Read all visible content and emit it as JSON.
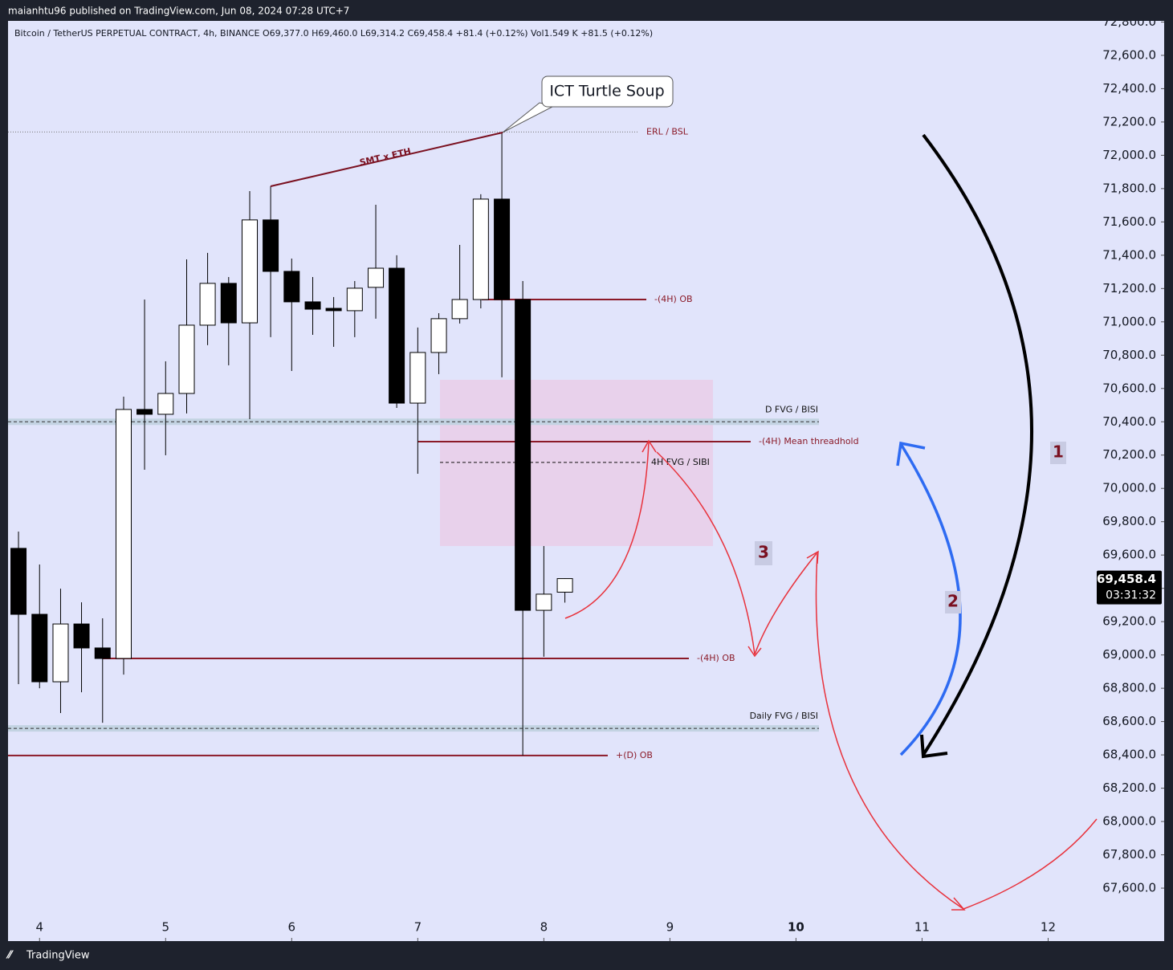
{
  "published": "maianhtu96 published on TradingView.com, Jun 08, 2024 07:28 UTC+7",
  "brand": "TradingView",
  "chart_data": {
    "type": "candlestick",
    "title": "Bitcoin / TetherUS PERPETUAL CONTRACT, 4h, BINANCE  O69,377.0  H69,460.0  L69,314.2  C69,458.4  +81.4 (+0.12%)  Vol1.549 K  +81.5 (+0.12%)",
    "x": [
      3.833,
      4,
      4.167,
      4.333,
      4.5,
      4.667,
      4.833,
      5,
      5.167,
      5.333,
      5.5,
      5.667,
      5.833,
      6,
      6.167,
      6.333,
      6.5,
      6.667,
      6.833,
      7,
      7.167,
      7.333,
      7.5,
      7.667,
      7.833,
      8,
      8.167
    ],
    "open": [
      69640,
      69244,
      68839,
      69186,
      69042,
      68979,
      70474,
      70445,
      70570,
      70980,
      71231,
      70994,
      71612,
      71303,
      71120,
      71081,
      71067,
      71207,
      71322,
      70512,
      70816,
      71019,
      71134,
      71737,
      71134,
      69268,
      69377
    ],
    "high": [
      69741,
      69543,
      69398,
      69316,
      69220,
      70551,
      71134,
      70763,
      71375,
      71414,
      71269,
      71785,
      71814,
      71380,
      71269,
      71149,
      71245,
      71703,
      71400,
      70966,
      71052,
      71462,
      71766,
      72137,
      71245,
      69654,
      69460
    ],
    "low": [
      68825,
      68800,
      68651,
      68776,
      68593,
      68882,
      70112,
      70199,
      70450,
      70860,
      70739,
      70416,
      70908,
      70705,
      70922,
      70850,
      70908,
      71019,
      70483,
      70088,
      70686,
      70990,
      71081,
      70667,
      68396,
      68989,
      69314.2
    ],
    "close": [
      69244,
      68839,
      69186,
      69042,
      68979,
      70474,
      70445,
      70570,
      70980,
      71231,
      70994,
      71612,
      71303,
      71120,
      71076,
      71067,
      71202,
      71322,
      70512,
      70816,
      71019,
      71134,
      71737,
      71134,
      69268,
      69365,
      69458.4
    ],
    "up_color": "#ffffff",
    "down_color": "#000000",
    "xlim": [
      3.75,
      12.36
    ],
    "xticks": [
      4,
      5,
      6,
      7,
      8,
      9,
      10,
      11,
      12
    ],
    "ylim": [
      67282,
      72807
    ],
    "yticks": [
      {
        "value": 67600,
        "label": "67,600.0"
      },
      {
        "value": 67800,
        "label": "67,800.0"
      },
      {
        "value": 68000,
        "label": "68,000.0"
      },
      {
        "value": 68200,
        "label": "68,200.0"
      },
      {
        "value": 68400,
        "label": "68,400.0"
      },
      {
        "value": 68600,
        "label": "68,600.0"
      },
      {
        "value": 68800,
        "label": "68,800.0"
      },
      {
        "value": 69000,
        "label": "69,000.0"
      },
      {
        "value": 69200,
        "label": "69,200.0"
      },
      {
        "value": 69400,
        "label": "69,400.0"
      },
      {
        "value": 69600,
        "label": "69,600.0"
      },
      {
        "value": 69800,
        "label": "69,800.0"
      },
      {
        "value": 70000,
        "label": "70,000.0"
      },
      {
        "value": 70200,
        "label": "70,200.0"
      },
      {
        "value": 70400,
        "label": "70,400.0"
      },
      {
        "value": 70600,
        "label": "70,600.0"
      },
      {
        "value": 70800,
        "label": "70,800.0"
      },
      {
        "value": 71000,
        "label": "71,000.0"
      },
      {
        "value": 71200,
        "label": "71,200.0"
      },
      {
        "value": 71400,
        "label": "71,400.0"
      },
      {
        "value": 71600,
        "label": "71,600.0"
      },
      {
        "value": 71800,
        "label": "71,800.0"
      },
      {
        "value": 72000,
        "label": "72,000.0"
      },
      {
        "value": 72200,
        "label": "72,200.0"
      },
      {
        "value": 72400,
        "label": "72,400.0"
      },
      {
        "value": 72600,
        "label": "72,600.0"
      },
      {
        "value": 72800,
        "label": "72,800.0"
      }
    ],
    "levels": [
      {
        "label": "ERL / BSL",
        "value": 72140
      },
      {
        "label": "-(4H) OB",
        "value": 71134
      },
      {
        "label": "D FVG / BISI",
        "value": 70400
      },
      {
        "label": "-(4H) Mean threadhold",
        "value": 70281
      },
      {
        "label": "4H FVG / SIBI",
        "value": 70156
      },
      {
        "label": "-(4H) OB",
        "value": 68979
      },
      {
        "label": "Daily FVG / BISI",
        "value": 68559
      },
      {
        "label": "+(D) OB",
        "value": 68396
      }
    ],
    "fvg_zone": {
      "low": 69654,
      "high": 70652
    },
    "annotations": {
      "callout": "ICT Turtle Soup",
      "smt": "SMT x ETH",
      "step1": "1",
      "step2": "2",
      "step3": "3"
    },
    "last_price": {
      "value": 69458.4,
      "label": "69,458.4"
    },
    "countdown": "03:31:32"
  }
}
